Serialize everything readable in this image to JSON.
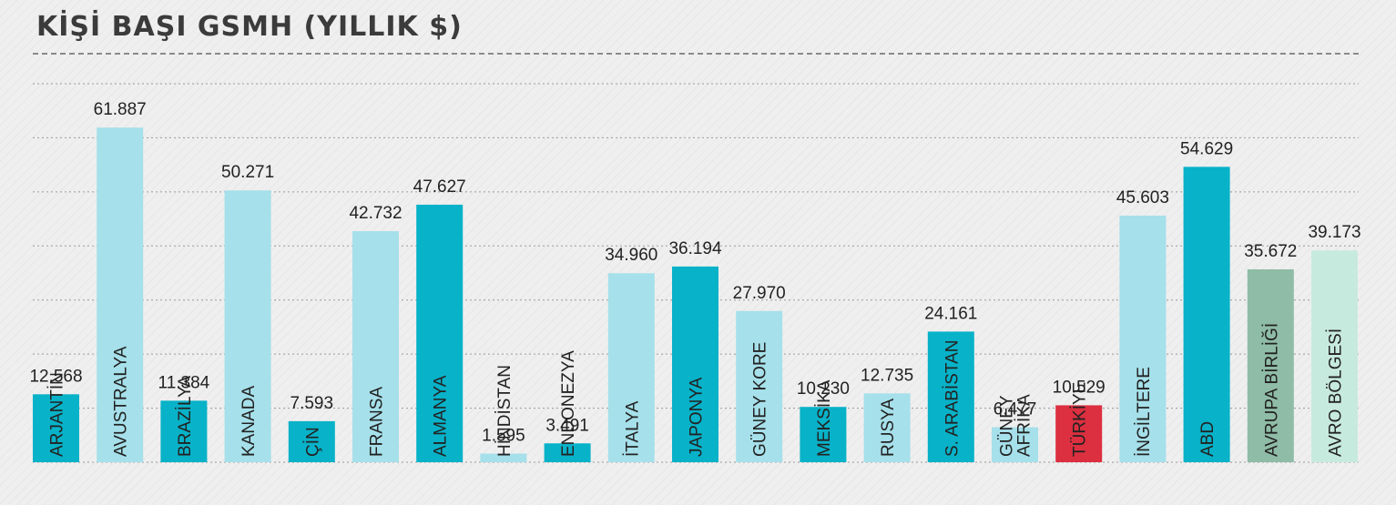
{
  "title": "KİŞİ BAŞI GSMH (YILLIK $)",
  "colors": {
    "dark": "#08b2c8",
    "light": "#a6e0ea",
    "red": "#dc2f3f",
    "green_dark": "#8fbca6",
    "green_light": "#c7eadf",
    "label_text": "#222222",
    "grid": "#9a9a9a"
  },
  "chart_data": {
    "type": "bar",
    "title": "KİŞİ BAŞI GSMH (YILLIK $)",
    "ylim": [
      0,
      70000
    ],
    "grid": true,
    "categories": [
      "ARJANTİN",
      "AVUSTRALYA",
      "BRAZİLYA",
      "KANADA",
      "ÇİN",
      "FRANSA",
      "ALMANYA",
      "HİNDİSTAN",
      "ENDONEZYA",
      "İTALYA",
      "JAPONYA",
      "GÜNEY KORE",
      "MEKSİKA",
      "RUSYA",
      "S. ARABİSTAN",
      "GÜNEY AFRİKA",
      "TÜRKİYE",
      "İNGİLTERE",
      "ABD",
      "AVRUPA BİRLİĞİ",
      "AVRO BÖLGESİ"
    ],
    "values": [
      12568,
      61887,
      11384,
      50271,
      7593,
      42732,
      47627,
      1595,
      3491,
      34960,
      36194,
      27970,
      10230,
      12735,
      24161,
      6477,
      10529,
      45603,
      54629,
      35672,
      39173
    ],
    "value_labels": [
      "12.568",
      "61.887",
      "11.384",
      "50.271",
      "7.593",
      "42.732",
      "47.627",
      "1.595",
      "3.491",
      "34.960",
      "36.194",
      "27.970",
      "10.230",
      "12.735",
      "24.161",
      "6.477",
      "10.529",
      "45.603",
      "54.629",
      "35.672",
      "39.173"
    ],
    "bar_colors": [
      "dark",
      "light",
      "dark",
      "light",
      "dark",
      "light",
      "dark",
      "light",
      "dark",
      "light",
      "dark",
      "light",
      "dark",
      "light",
      "dark",
      "light",
      "red",
      "light",
      "dark",
      "green_dark",
      "green_light"
    ]
  }
}
